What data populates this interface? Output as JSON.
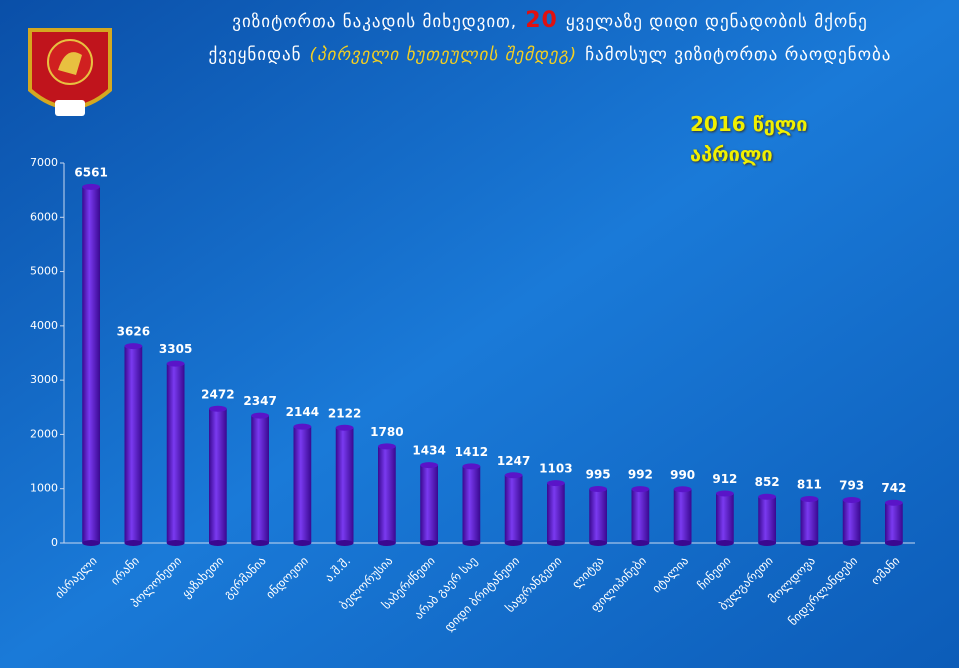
{
  "chart_data": {
    "type": "bar",
    "title_line1": [
      "ვიზიტორთა ნაკადის მიხედვით,",
      "20",
      "ყველაზე დიდი დენადობის მქონე"
    ],
    "title_line2": [
      "ქვეყნიდან",
      "(პირველი ხუთეულის შემდეგ)",
      "ჩამოსულ ვიზიტორთა რაოდენობა"
    ],
    "subtitle": [
      "2016 წელი",
      "აპრილი"
    ],
    "categories": [
      "ისრაელი",
      "ირანი",
      "პოლონეთი",
      "ყაზახეთი",
      "გერმანია",
      "ინდოეთი",
      "ა.შ.შ.",
      "ბელორუსია",
      "საბერძნეთი",
      "არაბ გაერ საე",
      "დიდი ბრიტანეთი",
      "საფრანგეთი",
      "ლიტვა",
      "ფილიპინები",
      "იტალია",
      "ჩინეთი",
      "ბულგარეთი",
      "მოლდოვა",
      "ნიდერლანდები",
      "ომანი"
    ],
    "values": [
      6561,
      3626,
      3305,
      2472,
      2347,
      2144,
      2122,
      1780,
      1434,
      1412,
      1247,
      1103,
      995,
      992,
      990,
      912,
      852,
      811,
      793,
      742
    ],
    "color": "#5a14c8",
    "ylim": [
      0,
      7000
    ],
    "yticks": [
      0,
      1000,
      2000,
      3000,
      4000,
      5000,
      6000,
      7000
    ],
    "grid": false
  }
}
